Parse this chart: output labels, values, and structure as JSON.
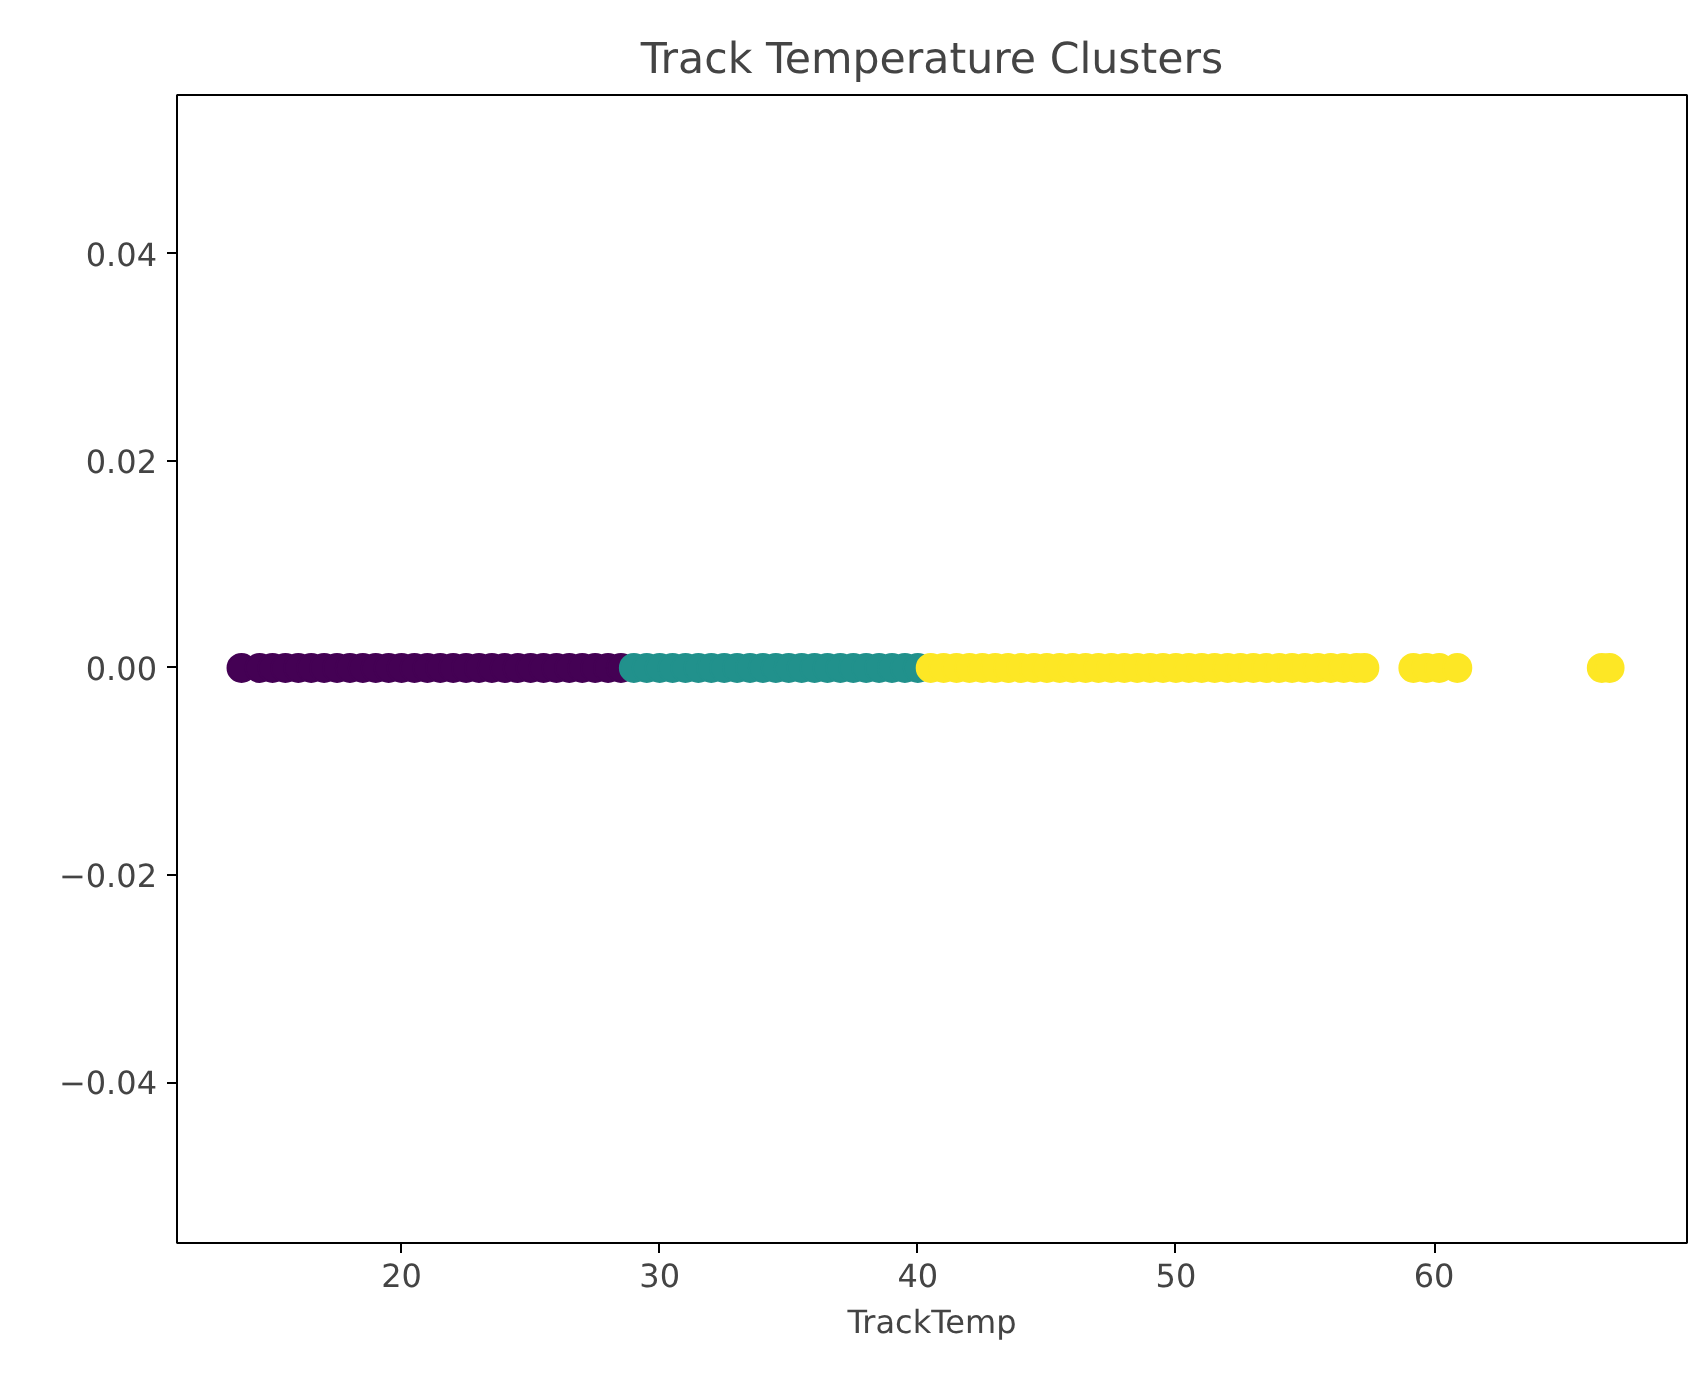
{
  "chart_data": {
    "type": "scatter",
    "title": "Track Temperature Clusters",
    "xlabel": "TrackTemp",
    "xlim": [
      11.3,
      69.8
    ],
    "ylim": [
      -0.0555,
      0.0553
    ],
    "xticks": [
      20,
      30,
      40,
      50,
      60
    ],
    "yticks": [
      {
        "value": -0.04,
        "label": "−0.04"
      },
      {
        "value": -0.02,
        "label": "−0.02"
      },
      {
        "value": 0,
        "label": "0.00"
      },
      0.02,
      0.04
    ],
    "grid": false,
    "marker": "circle",
    "series": [
      {
        "color": "#440154",
        "x": [
          13.8,
          14.5,
          15,
          15.5,
          16,
          16.5,
          17,
          17.5,
          18,
          18.5,
          19,
          19.5,
          20,
          20.5,
          21,
          21.5,
          22,
          22.5,
          23,
          23.5,
          24,
          24.5,
          25,
          25.5,
          26,
          26.5,
          27,
          27.5,
          28,
          28.5
        ],
        "values": [
          0,
          0,
          0,
          0,
          0,
          0,
          0,
          0,
          0,
          0,
          0,
          0,
          0,
          0,
          0,
          0,
          0,
          0,
          0,
          0,
          0,
          0,
          0,
          0,
          0,
          0,
          0,
          0,
          0,
          0
        ]
      },
      {
        "color": "#21918c",
        "x": [
          29,
          29.5,
          30,
          30.5,
          31,
          31.5,
          32,
          32.5,
          33,
          33.5,
          34,
          34.5,
          35,
          35.5,
          36,
          36.5,
          37,
          37.5,
          38,
          38.5,
          39,
          39.5,
          40
        ],
        "values": [
          0,
          0,
          0,
          0,
          0,
          0,
          0,
          0,
          0,
          0,
          0,
          0,
          0,
          0,
          0,
          0,
          0,
          0,
          0,
          0,
          0,
          0,
          0
        ]
      },
      {
        "color": "#fde725",
        "x": [
          40.5,
          41,
          41.5,
          42,
          42.5,
          43,
          43.5,
          44,
          44.5,
          45,
          45.5,
          46,
          46.5,
          47,
          47.5,
          48,
          48.5,
          49,
          49.5,
          50,
          50.5,
          51,
          51.5,
          52,
          52.5,
          53,
          53.5,
          54,
          54.5,
          55,
          55.5,
          56,
          56.5,
          57,
          57.3,
          59.2,
          59.7,
          60.2,
          60.9,
          66.5,
          66.8
        ],
        "values": [
          0,
          0,
          0,
          0,
          0,
          0,
          0,
          0,
          0,
          0,
          0,
          0,
          0,
          0,
          0,
          0,
          0,
          0,
          0,
          0,
          0,
          0,
          0,
          0,
          0,
          0,
          0,
          0,
          0,
          0,
          0,
          0,
          0,
          0,
          0,
          0,
          0,
          0,
          0,
          0,
          0
        ]
      }
    ]
  }
}
